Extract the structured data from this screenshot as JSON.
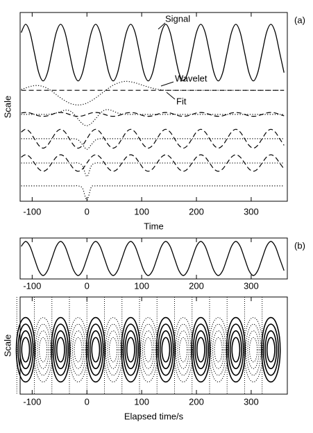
{
  "chart_data": [
    {
      "type": "line",
      "panel_label": "(a)",
      "ylabel": "Scale",
      "xlabel": "Time",
      "xlim": [
        -122,
        366
      ],
      "xticks": [
        -100,
        0,
        100,
        200,
        300
      ],
      "ylim": [
        0,
        8
      ],
      "x": [
        -120,
        -112,
        -104,
        -96,
        -88,
        -80,
        -72,
        -64,
        -56,
        -48,
        -40,
        -32,
        -24,
        -16,
        -8,
        0,
        8,
        16,
        24,
        32,
        40,
        48,
        56,
        64,
        72,
        80,
        88,
        96,
        104,
        112,
        120,
        128,
        136,
        144,
        152,
        160,
        168,
        176,
        184,
        192,
        200,
        208,
        216,
        224,
        232,
        240,
        248,
        256,
        264,
        272,
        280,
        288,
        296,
        304,
        312,
        320,
        328,
        336,
        344,
        352,
        360
      ],
      "series": [
        {
          "name": "Signal",
          "color": "#000000",
          "style": "solid",
          "values": [
            7.15,
            7.5,
            7.15,
            6.3,
            5.45,
            5.1,
            5.45,
            6.3,
            7.15,
            7.5,
            7.15,
            6.3,
            5.45,
            5.1,
            5.45,
            6.3,
            7.15,
            7.5,
            7.15,
            6.3,
            5.45,
            5.1,
            5.45,
            6.3,
            7.15,
            7.5,
            7.15,
            6.3,
            5.45,
            5.1,
            5.45,
            6.3,
            7.15,
            7.5,
            7.15,
            6.3,
            5.45,
            5.1,
            5.45,
            6.3,
            7.15,
            7.5,
            7.15,
            6.3,
            5.45,
            5.1,
            5.45,
            6.3,
            7.15,
            7.5,
            7.15,
            6.3,
            5.45,
            5.1,
            5.45,
            6.3,
            7.15,
            7.5,
            7.15,
            6.3,
            5.45
          ]
        },
        {
          "name": "Wavelet",
          "color": "#000000",
          "style": "dotted",
          "values": [
            4.74,
            4.8,
            4.86,
            4.9,
            4.9,
            4.86,
            4.78,
            4.66,
            4.52,
            4.38,
            4.26,
            4.16,
            4.1,
            4.08,
            4.1,
            4.16,
            4.26,
            4.38,
            4.52,
            4.66,
            4.8,
            4.92,
            5.0,
            5.06,
            5.08,
            5.06,
            5.02,
            4.96,
            4.9,
            4.84,
            4.79,
            4.75,
            4.72,
            4.7,
            4.7,
            4.7,
            4.7,
            4.7,
            4.7,
            4.7,
            4.7,
            4.7,
            4.7,
            4.7,
            4.7,
            4.7,
            4.7,
            4.7,
            4.7,
            4.7,
            4.7,
            4.7,
            4.7,
            4.7,
            4.7,
            4.7,
            4.7,
            4.7,
            4.7,
            4.7,
            4.7
          ]
        },
        {
          "name": "Fit",
          "color": "#000000",
          "style": "dashed",
          "values": [
            4.7,
            4.7,
            4.7,
            4.7,
            4.7,
            4.7,
            4.7,
            4.7,
            4.7,
            4.7,
            4.7,
            4.7,
            4.7,
            4.7,
            4.7,
            4.7,
            4.7,
            4.7,
            4.7,
            4.7,
            4.7,
            4.7,
            4.7,
            4.7,
            4.7,
            4.7,
            4.7,
            4.7,
            4.7,
            4.7,
            4.7,
            4.7,
            4.7,
            4.7,
            4.7,
            4.7,
            4.7,
            4.7,
            4.7,
            4.7,
            4.7,
            4.7,
            4.7,
            4.7,
            4.7,
            4.7,
            4.7,
            4.7,
            4.7,
            4.7,
            4.7,
            4.7,
            4.7,
            4.7,
            4.7,
            4.7,
            4.7,
            4.7,
            4.7,
            4.7,
            4.7
          ]
        },
        {
          "color": "#000000",
          "style": "dotted",
          "values": [
            3.68,
            3.68,
            3.68,
            3.68,
            3.68,
            3.68,
            3.68,
            3.7,
            3.74,
            3.8,
            3.86,
            3.84,
            3.7,
            3.48,
            3.28,
            3.2,
            3.3,
            3.5,
            3.72,
            3.86,
            3.88,
            3.82,
            3.74,
            3.7,
            3.68,
            3.68,
            3.68,
            3.68,
            3.68,
            3.68,
            3.68,
            3.68,
            3.68,
            3.68,
            3.68,
            3.68,
            3.68,
            3.68,
            3.68,
            3.68,
            3.68,
            3.68,
            3.68,
            3.68,
            3.68,
            3.68,
            3.68,
            3.68,
            3.68,
            3.68,
            3.68,
            3.68,
            3.68,
            3.68,
            3.68,
            3.68,
            3.68,
            3.68,
            3.68,
            3.68,
            3.68
          ]
        },
        {
          "color": "#000000",
          "style": "dashed",
          "values": [
            3.74,
            3.76,
            3.74,
            3.68,
            3.62,
            3.6,
            3.62,
            3.68,
            3.74,
            3.76,
            3.74,
            3.68,
            3.62,
            3.6,
            3.62,
            3.68,
            3.74,
            3.76,
            3.74,
            3.68,
            3.62,
            3.6,
            3.62,
            3.68,
            3.74,
            3.76,
            3.74,
            3.68,
            3.62,
            3.6,
            3.62,
            3.68,
            3.74,
            3.76,
            3.74,
            3.68,
            3.62,
            3.6,
            3.62,
            3.68,
            3.74,
            3.76,
            3.74,
            3.68,
            3.62,
            3.6,
            3.62,
            3.68,
            3.74,
            3.76,
            3.74,
            3.68,
            3.62,
            3.6,
            3.62,
            3.68,
            3.74,
            3.76,
            3.74,
            3.68,
            3.62
          ]
        },
        {
          "color": "#000000",
          "style": "dotted",
          "values": [
            2.65,
            2.65,
            2.65,
            2.65,
            2.65,
            2.65,
            2.65,
            2.65,
            2.65,
            2.65,
            2.65,
            2.65,
            2.65,
            2.6,
            2.4,
            2.2,
            2.4,
            2.6,
            2.65,
            2.65,
            2.65,
            2.65,
            2.65,
            2.65,
            2.65,
            2.65,
            2.65,
            2.65,
            2.65,
            2.65,
            2.65,
            2.65,
            2.65,
            2.65,
            2.65,
            2.65,
            2.65,
            2.65,
            2.65,
            2.65,
            2.65,
            2.65,
            2.65,
            2.65,
            2.65,
            2.65,
            2.65,
            2.65,
            2.65,
            2.65,
            2.65,
            2.65,
            2.65,
            2.65,
            2.65,
            2.65,
            2.65,
            2.65,
            2.65,
            2.65,
            2.65
          ]
        },
        {
          "color": "#000000",
          "style": "dashed",
          "values": [
            2.93,
            3.05,
            2.93,
            2.65,
            2.37,
            2.25,
            2.37,
            2.65,
            2.93,
            3.05,
            2.93,
            2.65,
            2.37,
            2.25,
            2.37,
            2.65,
            2.93,
            3.05,
            2.93,
            2.65,
            2.37,
            2.25,
            2.37,
            2.65,
            2.93,
            3.05,
            2.93,
            2.65,
            2.37,
            2.25,
            2.37,
            2.65,
            2.93,
            3.05,
            2.93,
            2.65,
            2.37,
            2.25,
            2.37,
            2.65,
            2.93,
            3.05,
            2.93,
            2.65,
            2.37,
            2.25,
            2.37,
            2.65,
            2.93,
            3.05,
            2.93,
            2.65,
            2.37,
            2.25,
            2.37,
            2.65,
            2.93,
            3.05,
            2.93,
            2.65,
            2.37
          ]
        },
        {
          "color": "#000000",
          "style": "dotted",
          "values": [
            1.62,
            1.62,
            1.62,
            1.62,
            1.62,
            1.62,
            1.62,
            1.62,
            1.62,
            1.62,
            1.62,
            1.62,
            1.62,
            1.62,
            1.5,
            1.05,
            1.5,
            1.62,
            1.62,
            1.62,
            1.62,
            1.62,
            1.62,
            1.62,
            1.62,
            1.62,
            1.62,
            1.62,
            1.62,
            1.62,
            1.62,
            1.62,
            1.62,
            1.62,
            1.62,
            1.62,
            1.62,
            1.62,
            1.62,
            1.62,
            1.62,
            1.62,
            1.62,
            1.62,
            1.62,
            1.62,
            1.62,
            1.62,
            1.62,
            1.62,
            1.62,
            1.62,
            1.62,
            1.62,
            1.62,
            1.62,
            1.62,
            1.62,
            1.62,
            1.62,
            1.62
          ]
        },
        {
          "color": "#000000",
          "style": "dashed",
          "values": [
            1.87,
            1.97,
            1.87,
            1.62,
            1.37,
            1.27,
            1.37,
            1.62,
            1.87,
            1.97,
            1.87,
            1.62,
            1.37,
            1.27,
            1.37,
            1.62,
            1.87,
            1.97,
            1.87,
            1.62,
            1.37,
            1.27,
            1.37,
            1.62,
            1.87,
            1.97,
            1.87,
            1.62,
            1.37,
            1.27,
            1.37,
            1.62,
            1.87,
            1.97,
            1.87,
            1.62,
            1.37,
            1.27,
            1.37,
            1.62,
            1.87,
            1.97,
            1.87,
            1.62,
            1.37,
            1.27,
            1.37,
            1.62,
            1.87,
            1.97,
            1.87,
            1.62,
            1.37,
            1.27,
            1.37,
            1.62,
            1.87,
            1.97,
            1.87,
            1.62,
            1.37
          ]
        },
        {
          "color": "#000000",
          "style": "dotted",
          "values": [
            0.65,
            0.65,
            0.65,
            0.65,
            0.65,
            0.65,
            0.65,
            0.65,
            0.65,
            0.65,
            0.65,
            0.65,
            0.65,
            0.65,
            0.55,
            0.05,
            0.6,
            0.65,
            0.65,
            0.65,
            0.65,
            0.65,
            0.65,
            0.65,
            0.65,
            0.65,
            0.65,
            0.65,
            0.65,
            0.65,
            0.65,
            0.65,
            0.65,
            0.65,
            0.65,
            0.65,
            0.65,
            0.65,
            0.65,
            0.65,
            0.65,
            0.65,
            0.65,
            0.65,
            0.65,
            0.65,
            0.65,
            0.65,
            0.65,
            0.65,
            0.65,
            0.65,
            0.65,
            0.65,
            0.65,
            0.65,
            0.65,
            0.65,
            0.65,
            0.65,
            0.65
          ]
        }
      ]
    },
    {
      "type": "line",
      "panel_label": "(b)",
      "xlim": [
        -122,
        366
      ],
      "xticks": [
        -100,
        0,
        100,
        200,
        300
      ],
      "ylim": [
        -1.2,
        1.2
      ],
      "x": [
        -120,
        -112,
        -104,
        -96,
        -88,
        -80,
        -72,
        -64,
        -56,
        -48,
        -40,
        -32,
        -24,
        -16,
        -8,
        0,
        8,
        16,
        24,
        32,
        40,
        48,
        56,
        64,
        72,
        80,
        88,
        96,
        104,
        112,
        120,
        128,
        136,
        144,
        152,
        160,
        168,
        176,
        184,
        192,
        200,
        208,
        216,
        224,
        232,
        240,
        248,
        256,
        264,
        272,
        280,
        288,
        296,
        304,
        312,
        320,
        328,
        336,
        344,
        352,
        360
      ],
      "series": [
        {
          "color": "#000000",
          "style": "solid",
          "values": [
            0.71,
            1,
            0.71,
            0,
            -0.71,
            -1,
            -0.71,
            0,
            0.71,
            1,
            0.71,
            0,
            -0.71,
            -1,
            -0.71,
            0,
            0.71,
            1,
            0.71,
            0,
            -0.71,
            -1,
            -0.71,
            0,
            0.71,
            1,
            0.71,
            0,
            -0.71,
            -1,
            -0.71,
            0,
            0.71,
            1,
            0.71,
            0,
            -0.71,
            -1,
            -0.71,
            0,
            0.71,
            1,
            0.71,
            0,
            -0.71,
            -1,
            -0.71,
            0,
            0.71,
            1,
            0.71,
            0,
            -0.71,
            -1,
            -0.71,
            0,
            0.71,
            1,
            0.71,
            0,
            -0.71
          ]
        }
      ]
    },
    {
      "type": "contour",
      "ylabel": "Scale",
      "xlabel": "Elapsed time/s",
      "xlim": [
        -122,
        366
      ],
      "xticks": [
        -100,
        0,
        100,
        200,
        300
      ],
      "x": [
        -112,
        -80,
        -48,
        -16,
        16,
        48,
        80,
        112,
        144,
        176,
        208,
        240,
        272,
        304,
        336
      ],
      "values": [
        1,
        -1,
        1,
        -1,
        1,
        -1,
        1,
        -1,
        1,
        -1,
        1,
        -1,
        1,
        -1,
        1
      ],
      "levels": [
        0.2,
        0.4,
        0.6,
        0.8
      ]
    }
  ]
}
